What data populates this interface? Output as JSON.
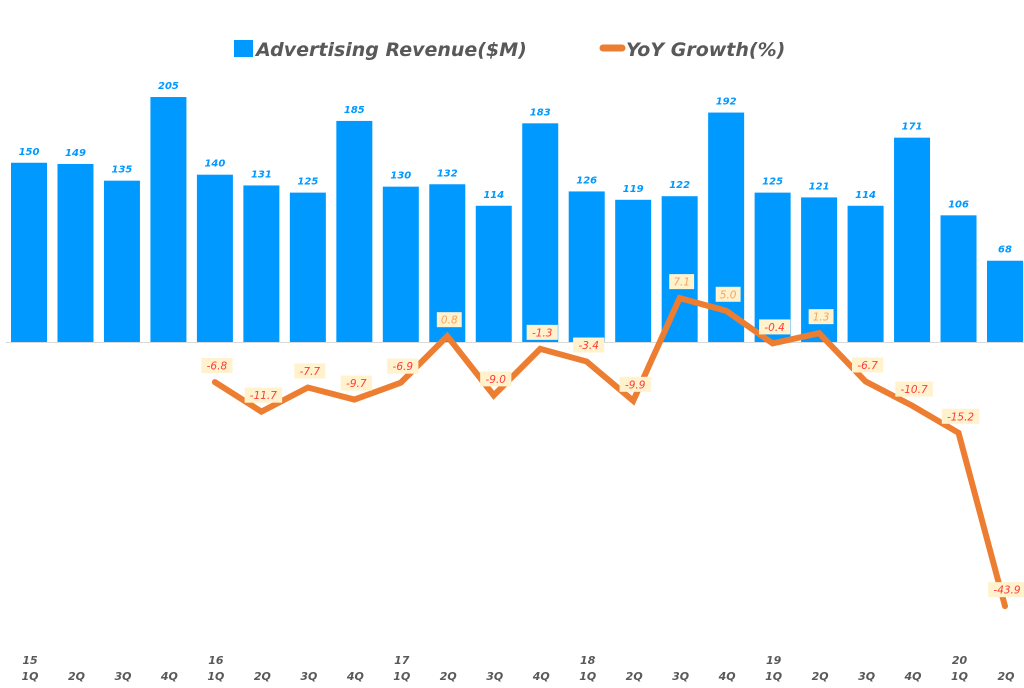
{
  "chart_data": {
    "type": "bar+line",
    "title": "",
    "legend": {
      "position": "top-center",
      "entries": [
        "Advertising Revenue($M)",
        "YoY Growth(%)"
      ]
    },
    "categories": [
      "1Q",
      "2Q",
      "3Q",
      "4Q",
      "1Q",
      "2Q",
      "3Q",
      "4Q",
      "1Q",
      "2Q",
      "3Q",
      "4Q",
      "1Q",
      "2Q",
      "3Q",
      "4Q",
      "1Q",
      "2Q",
      "3Q",
      "4Q",
      "1Q",
      "2Q"
    ],
    "year_labels": [
      "15",
      "",
      "",
      "",
      "16",
      "",
      "",
      "",
      "17",
      "",
      "",
      "",
      "18",
      "",
      "",
      "",
      "19",
      "",
      "",
      "",
      "20",
      ""
    ],
    "series": [
      {
        "name": "Advertising Revenue($M)",
        "type": "bar",
        "color": "#0099ff",
        "values": [
          150,
          149,
          135,
          205,
          140,
          131,
          125,
          185,
          130,
          132,
          114,
          183,
          126,
          119,
          122,
          192,
          125,
          121,
          114,
          171,
          106,
          68
        ]
      },
      {
        "name": "YoY Growth(%)",
        "type": "line",
        "color": "#ed7d31",
        "values": [
          null,
          null,
          null,
          null,
          -6.8,
          -11.7,
          -7.7,
          -9.7,
          -6.9,
          0.8,
          -9.0,
          -1.3,
          -3.4,
          -9.9,
          7.1,
          5.0,
          -0.4,
          1.3,
          -6.7,
          -10.7,
          -15.2,
          -43.9
        ],
        "labels": [
          "",
          "",
          "",
          "",
          "-6.8",
          "-11.7",
          "-7.7",
          "-9.7",
          "-6.9",
          "0.8",
          "-9.0",
          "-1.3",
          "-3.4",
          "-9.9",
          "7.1",
          "5.0",
          "-0.4",
          "1.3",
          "-6.7",
          "-10.7",
          "-15.2",
          "-43.9"
        ]
      }
    ],
    "colors": {
      "bar": "#0099ff",
      "line": "#ed7d31",
      "label_bg": "#fff2cc",
      "negative_label": "#ff3b3b",
      "positive_label": "#f4a460",
      "axis_text": "#595959"
    },
    "xlabel": "",
    "ylabel": "",
    "grid": false
  }
}
